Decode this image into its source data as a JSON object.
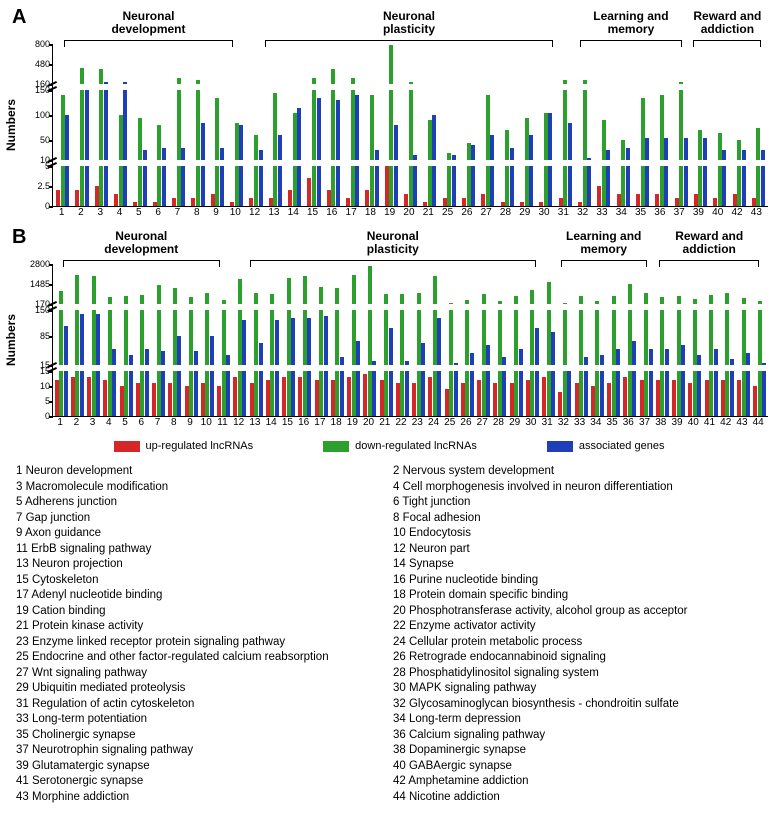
{
  "colors": {
    "up": "#d62728",
    "down": "#2ca02c",
    "assoc": "#1f3fb8",
    "axis": "#000000",
    "bg": "#ffffff"
  },
  "y_label": "Numbers",
  "panelA": {
    "label": "A",
    "sections": [
      {
        "name": "Neuronal\ndevelopment",
        "span": [
          1,
          11
        ]
      },
      {
        "name": "Neuronal\nplasticity",
        "span": [
          12,
          31
        ]
      },
      {
        "name": "Learning and\nmemory",
        "span": [
          32,
          37
        ]
      },
      {
        "name": "Reward and\naddiction",
        "span": [
          39,
          43
        ]
      }
    ],
    "bands": [
      {
        "ymin": 160,
        "ymax": 800,
        "ticks": [
          160,
          480,
          800
        ],
        "height": 40
      },
      {
        "ymin": 10,
        "ymax": 150,
        "ticks": [
          10,
          50,
          100,
          150
        ],
        "height": 70
      },
      {
        "ymin": 0,
        "ymax": 5,
        "ticks": [
          0,
          2.5,
          5.0
        ],
        "height": 40
      }
    ],
    "x_ticks": [
      1,
      2,
      3,
      4,
      5,
      6,
      7,
      8,
      9,
      10,
      12,
      13,
      14,
      15,
      16,
      17,
      18,
      19,
      20,
      21,
      25,
      26,
      27,
      28,
      29,
      30,
      31,
      32,
      33,
      34,
      35,
      36,
      37,
      39,
      40,
      42,
      43
    ],
    "data": {
      "1": {
        "up": 2.0,
        "down": 140,
        "assoc": 100
      },
      "2": {
        "up": 2.0,
        "down": 420,
        "assoc": 150
      },
      "3": {
        "up": 2.5,
        "down": 400,
        "assoc": 190
      },
      "4": {
        "up": 1.5,
        "down": 100,
        "assoc": 190
      },
      "5": {
        "up": 0.5,
        "down": 95,
        "assoc": 30
      },
      "6": {
        "up": 0.5,
        "down": 80,
        "assoc": 35
      },
      "7": {
        "up": 1.0,
        "down": 250,
        "assoc": 35
      },
      "8": {
        "up": 1.0,
        "down": 230,
        "assoc": 85
      },
      "9": {
        "up": 1.5,
        "down": 135,
        "assoc": 35
      },
      "10": {
        "up": 0.5,
        "down": 85,
        "assoc": 80
      },
      "12": {
        "up": 1.0,
        "down": 60,
        "assoc": 30
      },
      "13": {
        "up": 1.0,
        "down": 145,
        "assoc": 60
      },
      "14": {
        "up": 2.0,
        "down": 105,
        "assoc": 115
      },
      "15": {
        "up": 3.5,
        "down": 260,
        "assoc": 135
      },
      "16": {
        "up": 2.0,
        "down": 400,
        "assoc": 130
      },
      "17": {
        "up": 1.0,
        "down": 260,
        "assoc": 140
      },
      "18": {
        "up": 2.0,
        "down": 140,
        "assoc": 30
      },
      "19": {
        "up": 5.0,
        "down": 780,
        "assoc": 80
      },
      "20": {
        "up": 1.5,
        "down": 200,
        "assoc": 20
      },
      "21": {
        "up": 0.5,
        "down": 90,
        "assoc": 100
      },
      "25": {
        "up": 1.0,
        "down": 25,
        "assoc": 20
      },
      "26": {
        "up": 1.0,
        "down": 45,
        "assoc": 40
      },
      "27": {
        "up": 1.5,
        "down": 140,
        "assoc": 60
      },
      "28": {
        "up": 0.5,
        "down": 70,
        "assoc": 35
      },
      "29": {
        "up": 0.5,
        "down": 95,
        "assoc": 60
      },
      "30": {
        "up": 0.5,
        "down": 105,
        "assoc": 105
      },
      "31": {
        "up": 1.0,
        "down": 220,
        "assoc": 85
      },
      "32": {
        "up": 0.5,
        "down": 230,
        "assoc": 15
      },
      "33": {
        "up": 2.5,
        "down": 90,
        "assoc": 30
      },
      "34": {
        "up": 1.5,
        "down": 50,
        "assoc": 35
      },
      "35": {
        "up": 1.5,
        "down": 135,
        "assoc": 55
      },
      "36": {
        "up": 1.5,
        "down": 140,
        "assoc": 55
      },
      "37": {
        "up": 1.0,
        "down": 190,
        "assoc": 55
      },
      "39": {
        "up": 1.5,
        "down": 70,
        "assoc": 55
      },
      "40": {
        "up": 1.0,
        "down": 65,
        "assoc": 30
      },
      "42": {
        "up": 1.5,
        "down": 50,
        "assoc": 30
      },
      "43": {
        "up": 1.0,
        "down": 75,
        "assoc": 30
      }
    }
  },
  "panelB": {
    "label": "B",
    "sections": [
      {
        "name": "Neuronal\ndevelopment",
        "span": [
          1,
          11
        ]
      },
      {
        "name": "Neuronal\nplasticity",
        "span": [
          12,
          31
        ]
      },
      {
        "name": "Learning and\nmemory",
        "span": [
          32,
          37
        ]
      },
      {
        "name": "Reward and\naddiction",
        "span": [
          38,
          44
        ]
      }
    ],
    "bands": [
      {
        "ymin": 170,
        "ymax": 2800,
        "ticks": [
          170,
          1485,
          2800
        ],
        "height": 40
      },
      {
        "ymin": 15,
        "ymax": 150,
        "ticks": [
          15,
          85,
          150
        ],
        "height": 55
      },
      {
        "ymin": 0,
        "ymax": 15,
        "ticks": [
          0,
          5,
          10,
          15
        ],
        "height": 45
      }
    ],
    "x_ticks": [
      1,
      2,
      3,
      4,
      5,
      6,
      7,
      8,
      9,
      10,
      11,
      12,
      13,
      14,
      15,
      16,
      17,
      18,
      19,
      20,
      21,
      22,
      23,
      24,
      25,
      26,
      27,
      28,
      29,
      30,
      31,
      32,
      33,
      34,
      35,
      36,
      37,
      38,
      39,
      40,
      41,
      42,
      43,
      44
    ],
    "data": {
      "1": {
        "up": 12,
        "down": 1000,
        "assoc": 110
      },
      "2": {
        "up": 13,
        "down": 2100,
        "assoc": 140
      },
      "3": {
        "up": 13,
        "down": 2000,
        "assoc": 140
      },
      "4": {
        "up": 12,
        "down": 600,
        "assoc": 55
      },
      "5": {
        "up": 10,
        "down": 700,
        "assoc": 40
      },
      "6": {
        "up": 11,
        "down": 750,
        "assoc": 55
      },
      "7": {
        "up": 11,
        "down": 1400,
        "assoc": 50
      },
      "8": {
        "up": 11,
        "down": 1200,
        "assoc": 85
      },
      "9": {
        "up": 10,
        "down": 650,
        "assoc": 50
      },
      "10": {
        "up": 11,
        "down": 900,
        "assoc": 85
      },
      "11": {
        "up": 10,
        "down": 450,
        "assoc": 40
      },
      "12": {
        "up": 13,
        "down": 1800,
        "assoc": 125
      },
      "13": {
        "up": 11,
        "down": 900,
        "assoc": 70
      },
      "14": {
        "up": 12,
        "down": 800,
        "assoc": 125
      },
      "15": {
        "up": 13,
        "down": 1900,
        "assoc": 130
      },
      "16": {
        "up": 13,
        "down": 2000,
        "assoc": 130
      },
      "17": {
        "up": 12,
        "down": 1300,
        "assoc": 135
      },
      "18": {
        "up": 12,
        "down": 1200,
        "assoc": 35
      },
      "19": {
        "up": 13,
        "down": 2100,
        "assoc": 75
      },
      "20": {
        "up": 14,
        "down": 2700,
        "assoc": 25
      },
      "21": {
        "up": 12,
        "down": 800,
        "assoc": 105
      },
      "22": {
        "up": 11,
        "down": 850,
        "assoc": 25
      },
      "23": {
        "up": 11,
        "down": 900,
        "assoc": 70
      },
      "24": {
        "up": 13,
        "down": 2000,
        "assoc": 130
      },
      "25": {
        "up": 9,
        "down": 250,
        "assoc": 20
      },
      "26": {
        "up": 11,
        "down": 450,
        "assoc": 45
      },
      "27": {
        "up": 12,
        "down": 800,
        "assoc": 65
      },
      "28": {
        "up": 11,
        "down": 400,
        "assoc": 35
      },
      "29": {
        "up": 11,
        "down": 700,
        "assoc": 55
      },
      "30": {
        "up": 12,
        "down": 1100,
        "assoc": 105
      },
      "31": {
        "up": 13,
        "down": 1600,
        "assoc": 95
      },
      "32": {
        "up": 8,
        "down": 250,
        "assoc": 15
      },
      "33": {
        "up": 11,
        "down": 700,
        "assoc": 35
      },
      "34": {
        "up": 10,
        "down": 350,
        "assoc": 40
      },
      "35": {
        "up": 11,
        "down": 700,
        "assoc": 55
      },
      "36": {
        "up": 13,
        "down": 1500,
        "assoc": 75
      },
      "37": {
        "up": 12,
        "down": 900,
        "assoc": 55
      },
      "38": {
        "up": 12,
        "down": 650,
        "assoc": 55
      },
      "39": {
        "up": 12,
        "down": 700,
        "assoc": 65
      },
      "40": {
        "up": 11,
        "down": 500,
        "assoc": 40
      },
      "41": {
        "up": 12,
        "down": 750,
        "assoc": 55
      },
      "42": {
        "up": 12,
        "down": 900,
        "assoc": 30
      },
      "43": {
        "up": 12,
        "down": 550,
        "assoc": 45
      },
      "44": {
        "up": 10,
        "down": 350,
        "assoc": 20
      }
    }
  },
  "legend": [
    {
      "key": "up",
      "label": "up-regulated lncRNAs"
    },
    {
      "key": "down",
      "label": "down-regulated lncRNAs"
    },
    {
      "key": "assoc",
      "label": "associated genes"
    }
  ],
  "terms": [
    {
      "n": 1,
      "t": "Neuron development"
    },
    {
      "n": 2,
      "t": "Nervous system development"
    },
    {
      "n": 3,
      "t": "Macromolecule modification"
    },
    {
      "n": 4,
      "t": "Cell morphogenesis involved in neuron differentiation"
    },
    {
      "n": 5,
      "t": "Adherens junction"
    },
    {
      "n": 6,
      "t": "Tight junction"
    },
    {
      "n": 7,
      "t": "Gap junction"
    },
    {
      "n": 8,
      "t": "Focal adhesion"
    },
    {
      "n": 9,
      "t": "Axon guidance"
    },
    {
      "n": 10,
      "t": "Endocytosis"
    },
    {
      "n": 11,
      "t": "ErbB signaling pathway"
    },
    {
      "n": 12,
      "t": "Neuron part"
    },
    {
      "n": 13,
      "t": "Neuron projection"
    },
    {
      "n": 14,
      "t": "Synapse"
    },
    {
      "n": 15,
      "t": "Cytoskeleton"
    },
    {
      "n": 16,
      "t": "Purine nucleotide binding"
    },
    {
      "n": 17,
      "t": "Adenyl nucleotide binding"
    },
    {
      "n": 18,
      "t": "Protein domain specific binding"
    },
    {
      "n": 19,
      "t": "Cation binding"
    },
    {
      "n": 20,
      "t": "Phosphotransferase activity, alcohol group as acceptor"
    },
    {
      "n": 21,
      "t": "Protein kinase activity"
    },
    {
      "n": 22,
      "t": "Enzyme activator activity"
    },
    {
      "n": 23,
      "t": "Enzyme linked receptor protein signaling pathway"
    },
    {
      "n": 24,
      "t": "Cellular protein metabolic process"
    },
    {
      "n": 25,
      "t": "Endocrine and other factor-regulated calcium reabsorption"
    },
    {
      "n": 26,
      "t": "Retrograde endocannabinoid signaling"
    },
    {
      "n": 27,
      "t": "Wnt signaling pathway"
    },
    {
      "n": 28,
      "t": "Phosphatidylinositol signaling system"
    },
    {
      "n": 29,
      "t": "Ubiquitin mediated proteolysis"
    },
    {
      "n": 30,
      "t": "MAPK signaling pathway"
    },
    {
      "n": 31,
      "t": "Regulation of actin cytoskeleton"
    },
    {
      "n": 32,
      "t": "Glycosaminoglycan biosynthesis - chondroitin sulfate"
    },
    {
      "n": 33,
      "t": "Long-term potentiation"
    },
    {
      "n": 34,
      "t": "Long-term depression"
    },
    {
      "n": 35,
      "t": "Cholinergic synapse"
    },
    {
      "n": 36,
      "t": "Calcium signaling pathway"
    },
    {
      "n": 37,
      "t": "Neurotrophin signaling pathway"
    },
    {
      "n": 38,
      "t": "Dopaminergic synapse"
    },
    {
      "n": 39,
      "t": "Glutamatergic synapse"
    },
    {
      "n": 40,
      "t": "GABAergic synapse"
    },
    {
      "n": 41,
      "t": "Serotonergic synapse"
    },
    {
      "n": 42,
      "t": "Amphetamine addiction"
    },
    {
      "n": 43,
      "t": "Morphine addiction"
    },
    {
      "n": 44,
      "t": "Nicotine addiction"
    }
  ]
}
